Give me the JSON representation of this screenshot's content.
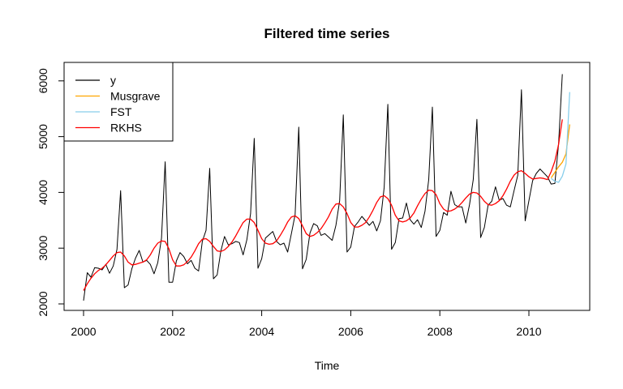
{
  "chart_data": {
    "type": "line",
    "title": "Filtered time series",
    "xlabel": "Time",
    "ylabel": "",
    "xlim": [
      2000,
      2011
    ],
    "ylim": [
      2000,
      6200
    ],
    "x_ticks": [
      2000,
      2002,
      2004,
      2006,
      2008,
      2010
    ],
    "y_ticks": [
      2000,
      3000,
      4000,
      5000,
      6000
    ],
    "legend_position": "top-left",
    "grid": false,
    "series": [
      {
        "name": "y",
        "color": "#000000",
        "x_start": 2000,
        "step": 0.08333,
        "values": [
          2060,
          2560,
          2480,
          2650,
          2640,
          2610,
          2710,
          2550,
          2680,
          2980,
          4030,
          2290,
          2340,
          2630,
          2820,
          2960,
          2750,
          2780,
          2710,
          2540,
          2740,
          3180,
          4550,
          2390,
          2390,
          2770,
          2920,
          2850,
          2720,
          2780,
          2640,
          2590,
          3120,
          3320,
          4430,
          2450,
          2520,
          2950,
          3210,
          3060,
          3080,
          3120,
          3100,
          2880,
          3150,
          3620,
          4970,
          2640,
          2810,
          3180,
          3240,
          3300,
          3120,
          3060,
          3090,
          2930,
          3260,
          3600,
          5170,
          2630,
          2800,
          3270,
          3440,
          3400,
          3230,
          3260,
          3200,
          3140,
          3410,
          3850,
          5390,
          2930,
          3020,
          3390,
          3470,
          3570,
          3490,
          3410,
          3480,
          3310,
          3490,
          4090,
          5580,
          2980,
          3100,
          3530,
          3540,
          3810,
          3510,
          3430,
          3510,
          3370,
          3660,
          4230,
          5530,
          3210,
          3320,
          3640,
          3590,
          4020,
          3780,
          3740,
          3740,
          3450,
          3780,
          4230,
          5310,
          3190,
          3370,
          3770,
          3840,
          4100,
          3860,
          3890,
          3770,
          3740,
          4030,
          4310,
          5840,
          3490,
          3850,
          4210,
          4340,
          4420,
          4350,
          4280,
          4150,
          4160,
          4870,
          6120
        ]
      },
      {
        "name": "Musgrave",
        "color": "#ffa500",
        "x_start": 2010.5,
        "step": 0.08333,
        "values": [
          4260,
          4360,
          4460,
          4540,
          4690,
          5220
        ]
      },
      {
        "name": "FST",
        "color": "#87ceeb",
        "x_start": 2010.5,
        "step": 0.08333,
        "values": [
          4250,
          4200,
          4180,
          4290,
          4510,
          5800
        ]
      },
      {
        "name": "RKHS",
        "color": "#ff0000",
        "x_start": 2000,
        "step": 0.08333,
        "values": [
          2240,
          2360,
          2460,
          2540,
          2600,
          2640,
          2700,
          2780,
          2860,
          2920,
          2930,
          2860,
          2750,
          2700,
          2710,
          2730,
          2750,
          2790,
          2880,
          3000,
          3090,
          3130,
          3120,
          2990,
          2790,
          2680,
          2680,
          2700,
          2760,
          2840,
          2950,
          3080,
          3160,
          3170,
          3120,
          3030,
          2950,
          2940,
          2970,
          3030,
          3110,
          3220,
          3340,
          3460,
          3520,
          3520,
          3460,
          3320,
          3170,
          3090,
          3070,
          3080,
          3130,
          3230,
          3340,
          3470,
          3560,
          3580,
          3530,
          3400,
          3260,
          3210,
          3230,
          3280,
          3350,
          3450,
          3560,
          3700,
          3790,
          3800,
          3740,
          3620,
          3460,
          3380,
          3380,
          3410,
          3460,
          3560,
          3680,
          3820,
          3920,
          3940,
          3890,
          3770,
          3590,
          3490,
          3470,
          3490,
          3540,
          3630,
          3760,
          3880,
          3980,
          4040,
          4030,
          3960,
          3800,
          3700,
          3660,
          3670,
          3700,
          3750,
          3820,
          3900,
          3970,
          4000,
          3990,
          3930,
          3840,
          3780,
          3770,
          3800,
          3850,
          3940,
          4060,
          4200,
          4310,
          4370,
          4390,
          4340,
          4280,
          4240,
          4250,
          4260,
          4250,
          4230,
          4370,
          4560,
          4860,
          5310
        ]
      }
    ]
  }
}
